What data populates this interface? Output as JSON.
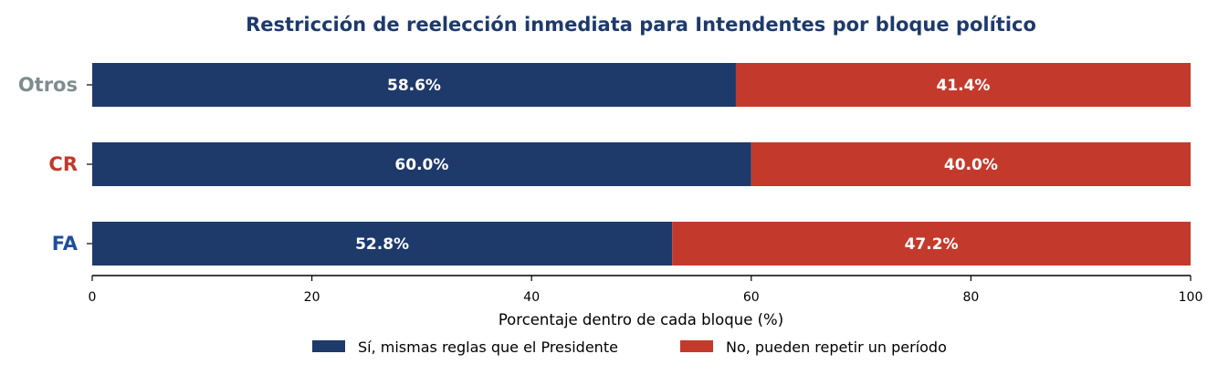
{
  "chart_data": {
    "type": "bar",
    "orientation": "horizontal",
    "stacked": true,
    "title": "Restricción de reelección inmediata para Intendentes por bloque político",
    "xlabel": "Porcentaje dentro de cada bloque (%)",
    "ylabel": "",
    "xlim": [
      0,
      100
    ],
    "xticks": [
      0,
      20,
      40,
      60,
      80,
      100
    ],
    "grid": false,
    "legend_position": "bottom-center",
    "categories": [
      "Otros",
      "CR",
      "FA"
    ],
    "category_colors": [
      "#7f8c8d",
      "#c0392b",
      "#1f4e9c"
    ],
    "series": [
      {
        "name": "Sí, mismas reglas que el Presidente",
        "color": "#1e3a6b",
        "values": [
          58.6,
          60.0,
          52.8
        ]
      },
      {
        "name": "No, pueden repetir un período",
        "color": "#c33a2c",
        "values": [
          41.4,
          40.0,
          47.2
        ]
      }
    ],
    "data_labels": [
      [
        "58.6%",
        "60.0%",
        "52.8%"
      ],
      [
        "41.4%",
        "40.0%",
        "47.2%"
      ]
    ],
    "title_color": "#1e3a6b"
  }
}
